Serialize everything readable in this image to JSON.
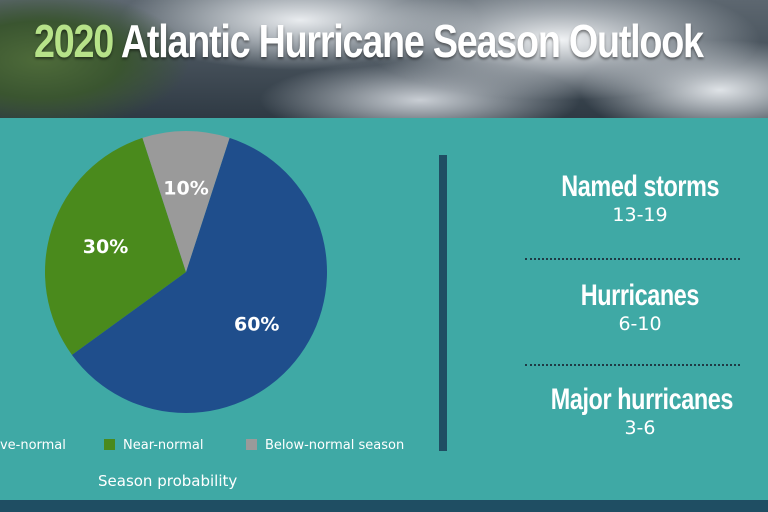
{
  "header": {
    "year": "2020",
    "title": "Atlantic Hurricane Season Outlook"
  },
  "chart_data": {
    "type": "pie",
    "slices": [
      {
        "label": "Above-normal",
        "visible_label": "ove-normal",
        "value": 60,
        "display": "60%",
        "color": "#1f4e8c"
      },
      {
        "label": "Near-normal",
        "value": 30,
        "display": "30%",
        "color": "#4a8a1c"
      },
      {
        "label": "Below-normal season",
        "value": 10,
        "display": "10%",
        "color": "#9a9a9a"
      }
    ],
    "caption": "Season probability",
    "legend_placement": "bottom"
  },
  "stats": [
    {
      "label": "Named storms",
      "value": "13-19"
    },
    {
      "label": "Hurricanes",
      "value": "6-10"
    },
    {
      "label": "Major hurricanes",
      "value": "3-6"
    }
  ],
  "colors": {
    "panel": "#3fa9a5",
    "accent_dark": "#1f4e63",
    "year": "#b7e389"
  }
}
